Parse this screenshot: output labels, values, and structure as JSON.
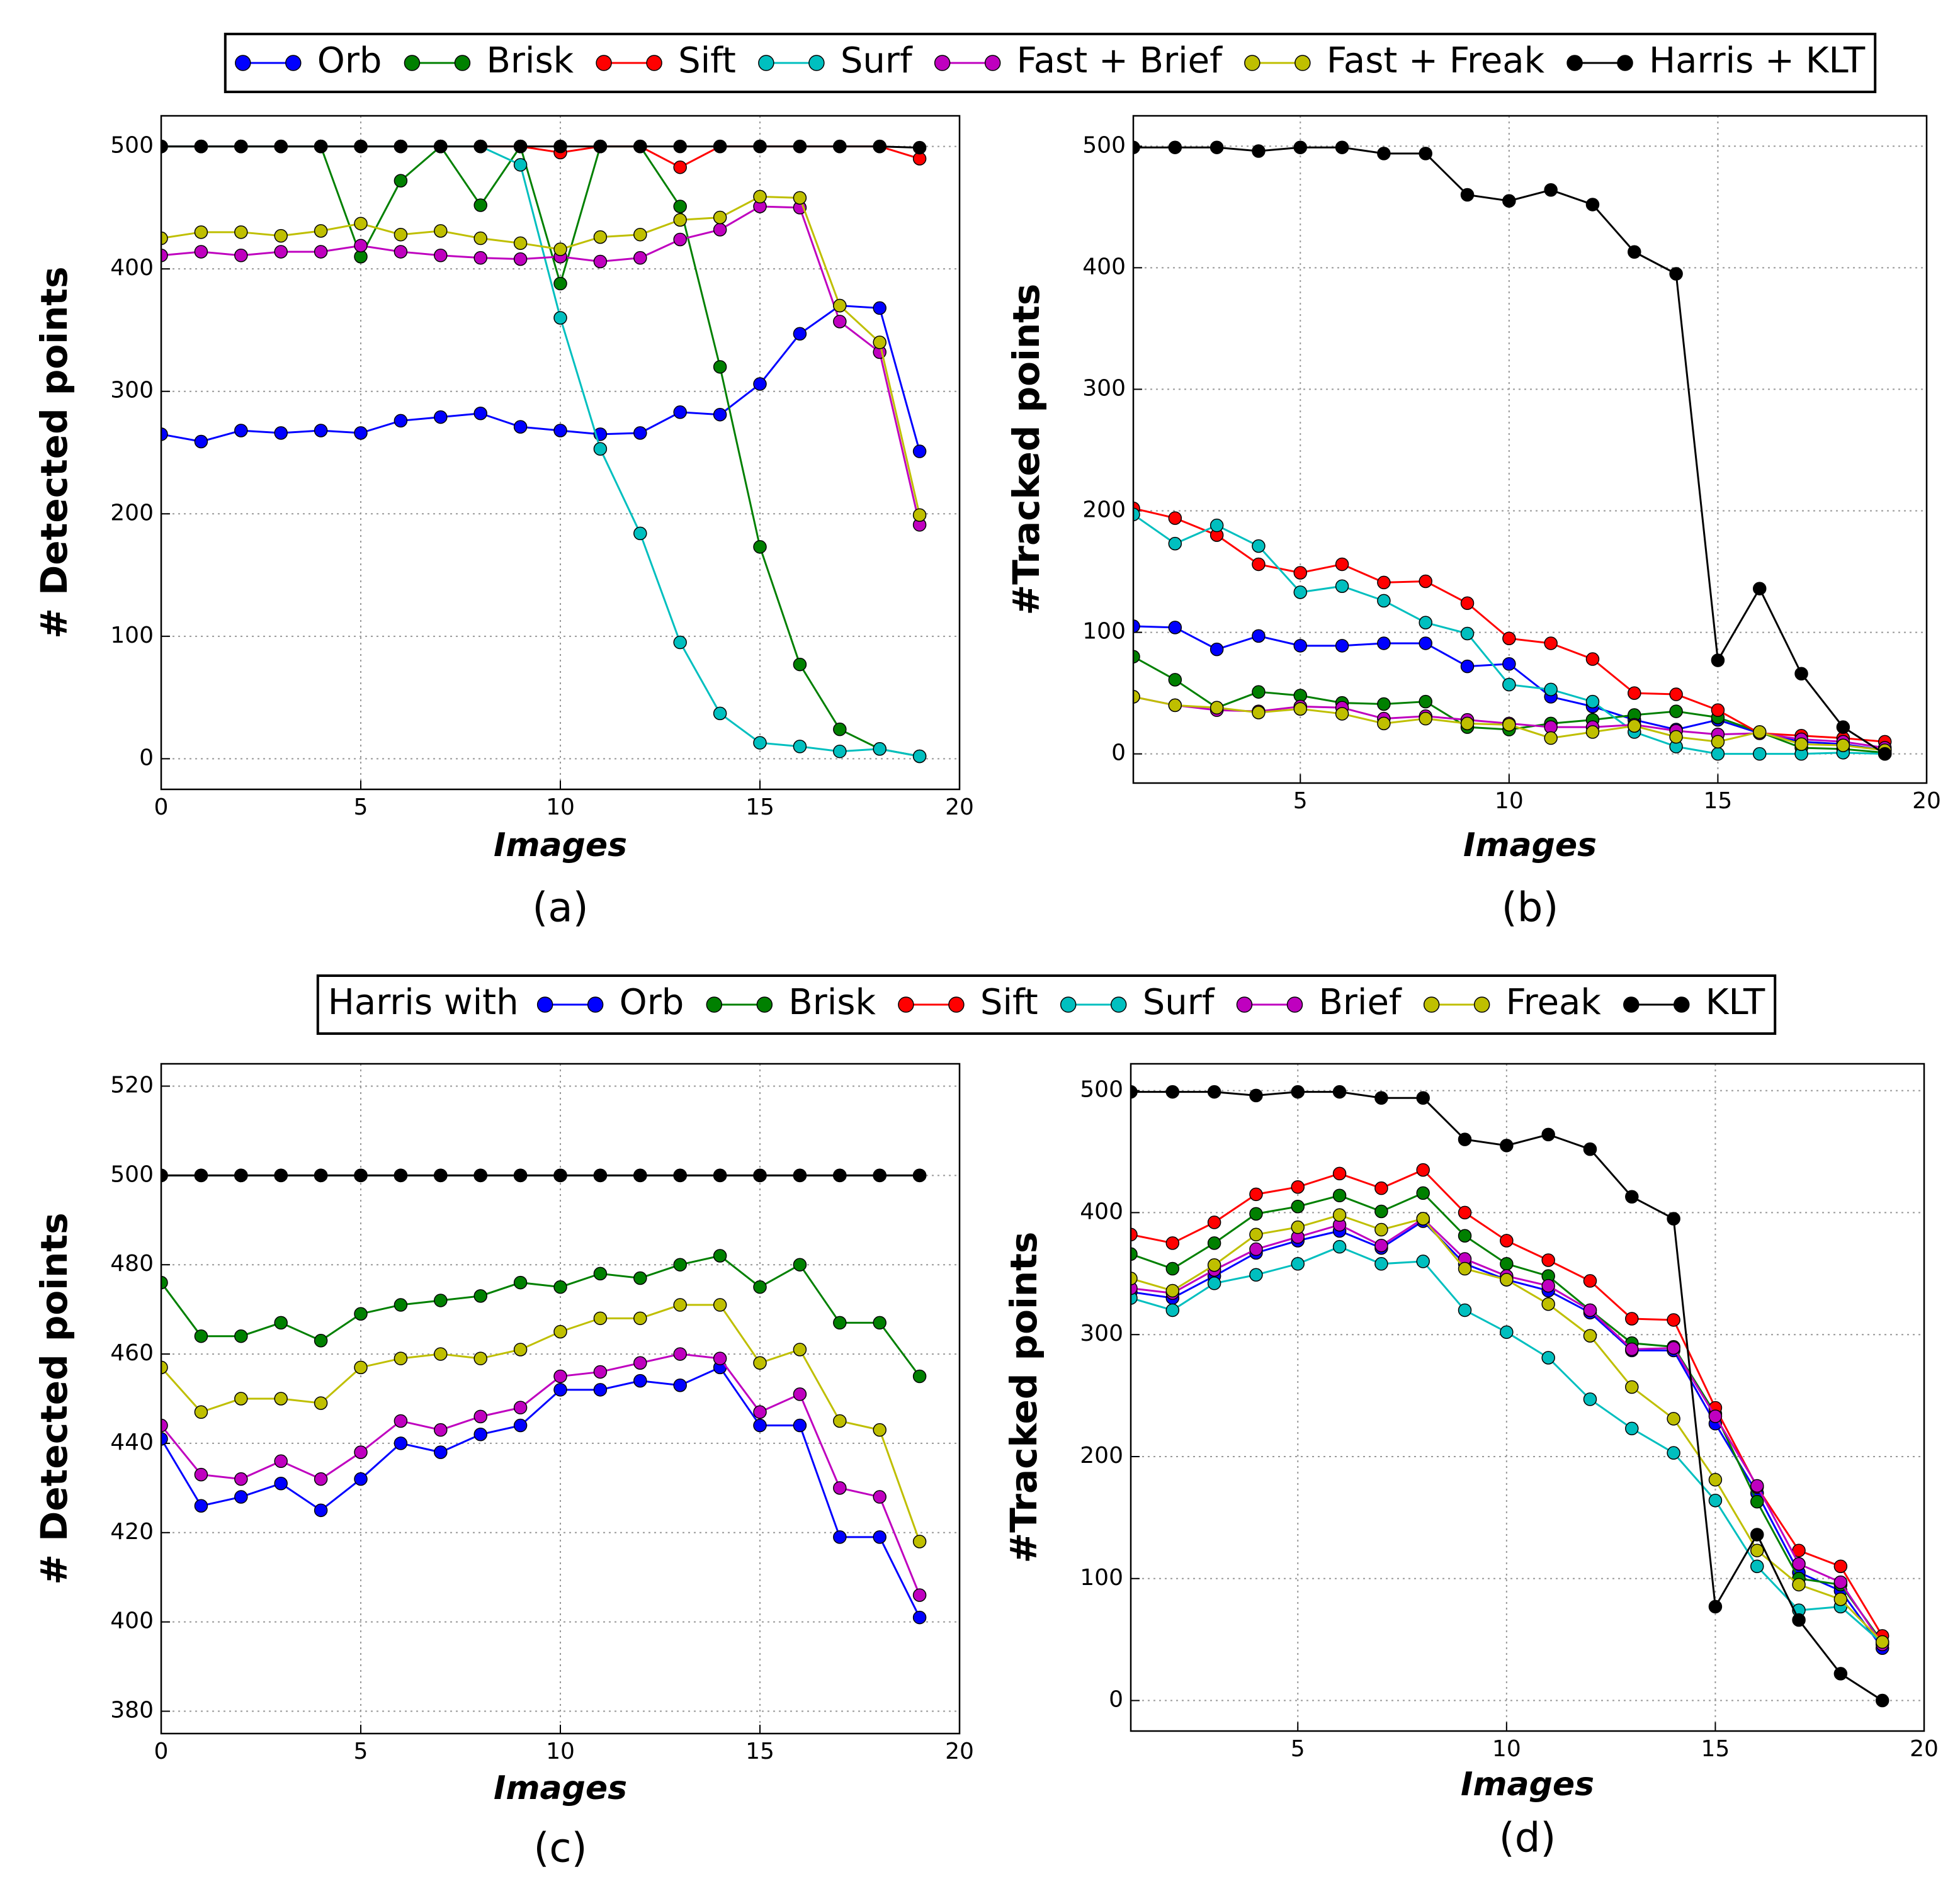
{
  "chart_data": [
    {
      "type": "line",
      "caption": "(a)",
      "xlabel": "Images",
      "ylabel": "# Detected points",
      "x": [
        0,
        1,
        2,
        3,
        4,
        5,
        6,
        7,
        8,
        9,
        10,
        11,
        12,
        13,
        14,
        15,
        16,
        17,
        18,
        19
      ],
      "xlim": [
        0,
        20
      ],
      "xticks": [
        0,
        5,
        10,
        15,
        20
      ],
      "ylim": [
        -25,
        525
      ],
      "yticks": [
        0,
        100,
        200,
        300,
        400,
        500
      ],
      "grid": true,
      "legend": "top",
      "series": [
        {
          "name": "Orb",
          "color": "#0000ff",
          "values": [
            265,
            259,
            268,
            266,
            268,
            266,
            276,
            279,
            282,
            271,
            268,
            265,
            266,
            283,
            281,
            306,
            347,
            370,
            368,
            251
          ]
        },
        {
          "name": "Brisk",
          "color": "#008000",
          "values": [
            500,
            500,
            500,
            500,
            500,
            410,
            472,
            500,
            452,
            500,
            388,
            500,
            500,
            451,
            320,
            173,
            77,
            24,
            8,
            2
          ]
        },
        {
          "name": "Sift",
          "color": "#ff0000",
          "values": [
            500,
            500,
            500,
            500,
            500,
            500,
            500,
            500,
            500,
            500,
            495,
            500,
            500,
            483,
            500,
            500,
            500,
            500,
            500,
            490
          ]
        },
        {
          "name": "Surf",
          "color": "#00bfbf",
          "values": [
            500,
            500,
            500,
            500,
            500,
            500,
            500,
            500,
            500,
            485,
            360,
            253,
            184,
            95,
            37,
            13,
            10,
            6,
            8,
            2
          ]
        },
        {
          "name": "Fast + Brief",
          "color": "#bf00bf",
          "values": [
            411,
            414,
            411,
            414,
            414,
            419,
            414,
            411,
            409,
            408,
            410,
            406,
            409,
            424,
            432,
            451,
            450,
            357,
            332,
            191
          ]
        },
        {
          "name": "Fast + Freak",
          "color": "#bfbf00",
          "values": [
            425,
            430,
            430,
            427,
            431,
            437,
            428,
            431,
            425,
            421,
            416,
            426,
            428,
            440,
            442,
            459,
            458,
            370,
            340,
            199
          ]
        },
        {
          "name": "Harris + KLT",
          "color": "#000000",
          "values": [
            500,
            500,
            500,
            500,
            500,
            500,
            500,
            500,
            500,
            500,
            500,
            500,
            500,
            500,
            500,
            500,
            500,
            500,
            500,
            499
          ]
        }
      ]
    },
    {
      "type": "line",
      "caption": "(b)",
      "xlabel": "Images",
      "ylabel": "#Tracked points",
      "x": [
        1,
        2,
        3,
        4,
        5,
        6,
        7,
        8,
        9,
        10,
        11,
        12,
        13,
        14,
        15,
        16,
        17,
        18,
        19
      ],
      "xlim": [
        1,
        20
      ],
      "xticks": [
        5,
        10,
        15,
        20
      ],
      "ylim": [
        -24,
        525
      ],
      "yticks": [
        0,
        100,
        200,
        300,
        400,
        500
      ],
      "grid": true,
      "series": [
        {
          "color": "#0000ff",
          "values": [
            105,
            104,
            86,
            97,
            89,
            89,
            91,
            91,
            72,
            74,
            47,
            39,
            28,
            20,
            28,
            17,
            10,
            8,
            3
          ]
        },
        {
          "color": "#008000",
          "values": [
            80,
            61,
            38,
            51,
            48,
            42,
            41,
            43,
            22,
            20,
            25,
            28,
            32,
            35,
            30,
            18,
            5,
            4,
            1
          ]
        },
        {
          "color": "#ff0000",
          "values": [
            202,
            194,
            180,
            156,
            149,
            156,
            141,
            142,
            124,
            95,
            91,
            78,
            50,
            49,
            36,
            17,
            15,
            13,
            10
          ]
        },
        {
          "color": "#00bfbf",
          "values": [
            197,
            173,
            188,
            171,
            133,
            138,
            126,
            108,
            99,
            57,
            53,
            43,
            18,
            6,
            0,
            0,
            0,
            1,
            0
          ]
        },
        {
          "color": "#bf00bf",
          "values": [
            47,
            40,
            36,
            35,
            39,
            38,
            29,
            31,
            28,
            25,
            22,
            22,
            24,
            19,
            16,
            17,
            12,
            10,
            5
          ]
        },
        {
          "color": "#bfbf00",
          "values": [
            47,
            40,
            38,
            34,
            37,
            33,
            25,
            29,
            25,
            24,
            13,
            18,
            23,
            14,
            10,
            18,
            8,
            7,
            3
          ]
        },
        {
          "color": "#000000",
          "values": [
            499,
            499,
            499,
            496,
            499,
            499,
            494,
            494,
            460,
            455,
            464,
            452,
            413,
            395,
            77,
            136,
            66,
            22,
            0
          ]
        }
      ]
    },
    {
      "type": "line",
      "caption": "(c)",
      "xlabel": "Images",
      "ylabel": "# Detected points",
      "x": [
        0,
        1,
        2,
        3,
        4,
        5,
        6,
        7,
        8,
        9,
        10,
        11,
        12,
        13,
        14,
        15,
        16,
        17,
        18,
        19
      ],
      "xlim": [
        0,
        20
      ],
      "xticks": [
        0,
        5,
        10,
        15,
        20
      ],
      "ylim": [
        375,
        525
      ],
      "yticks": [
        380,
        400,
        420,
        440,
        460,
        480,
        500,
        520
      ],
      "grid": true,
      "legend": "top",
      "legend_title": "Harris with",
      "series": [
        {
          "name": "Orb",
          "color": "#0000ff",
          "values": [
            441,
            426,
            428,
            431,
            425,
            432,
            440,
            438,
            442,
            444,
            452,
            452,
            454,
            453,
            457,
            444,
            444,
            419,
            419,
            401
          ]
        },
        {
          "name": "Brisk",
          "color": "#008000",
          "values": [
            476,
            464,
            464,
            467,
            463,
            469,
            471,
            472,
            473,
            476,
            475,
            478,
            477,
            480,
            482,
            475,
            480,
            467,
            467,
            455
          ]
        },
        {
          "name": "Sift",
          "color": "#ff0000",
          "values": [
            500,
            500,
            500,
            500,
            500,
            500,
            500,
            500,
            500,
            500,
            500,
            500,
            500,
            500,
            500,
            500,
            500,
            500,
            500,
            500
          ]
        },
        {
          "name": "Surf",
          "color": "#00bfbf",
          "values": [
            500,
            500,
            500,
            500,
            500,
            500,
            500,
            500,
            500,
            500,
            500,
            500,
            500,
            500,
            500,
            500,
            500,
            500,
            500,
            500
          ]
        },
        {
          "name": "Brief",
          "color": "#bf00bf",
          "values": [
            444,
            433,
            432,
            436,
            432,
            438,
            445,
            443,
            446,
            448,
            455,
            456,
            458,
            460,
            459,
            447,
            451,
            430,
            428,
            406
          ]
        },
        {
          "name": "Freak",
          "color": "#bfbf00",
          "values": [
            457,
            447,
            450,
            450,
            449,
            457,
            459,
            460,
            459,
            461,
            465,
            468,
            468,
            471,
            471,
            458,
            461,
            445,
            443,
            418
          ]
        },
        {
          "name": "KLT",
          "color": "#000000",
          "values": [
            500,
            500,
            500,
            500,
            500,
            500,
            500,
            500,
            500,
            500,
            500,
            500,
            500,
            500,
            500,
            500,
            500,
            500,
            500,
            500
          ]
        }
      ]
    },
    {
      "type": "line",
      "caption": "(d)",
      "xlabel": "Images",
      "ylabel": "#Tracked points",
      "x": [
        1,
        2,
        3,
        4,
        5,
        6,
        7,
        8,
        9,
        10,
        11,
        12,
        13,
        14,
        15,
        16,
        17,
        18,
        19
      ],
      "xlim": [
        1,
        20
      ],
      "xticks": [
        5,
        10,
        15,
        20
      ],
      "ylim": [
        -25,
        522
      ],
      "yticks": [
        0,
        100,
        200,
        300,
        400,
        500
      ],
      "grid": true,
      "series": [
        {
          "color": "#0000ff",
          "values": [
            335,
            330,
            348,
            367,
            377,
            385,
            371,
            393,
            358,
            345,
            336,
            318,
            287,
            287,
            227,
            170,
            105,
            90,
            43
          ]
        },
        {
          "color": "#008000",
          "values": [
            366,
            354,
            375,
            399,
            405,
            414,
            401,
            416,
            381,
            358,
            348,
            320,
            293,
            290,
            235,
            163,
            100,
            95,
            48
          ]
        },
        {
          "color": "#ff0000",
          "values": [
            382,
            375,
            392,
            415,
            421,
            432,
            420,
            435,
            400,
            377,
            361,
            344,
            313,
            312,
            240,
            175,
            123,
            110,
            53
          ]
        },
        {
          "color": "#00bfbf",
          "values": [
            330,
            320,
            342,
            349,
            358,
            372,
            358,
            360,
            320,
            302,
            281,
            247,
            223,
            203,
            164,
            110,
            74,
            77,
            47
          ]
        },
        {
          "color": "#bf00bf",
          "values": [
            338,
            334,
            353,
            370,
            380,
            390,
            373,
            395,
            362,
            348,
            340,
            320,
            288,
            289,
            233,
            176,
            112,
            97,
            46
          ]
        },
        {
          "color": "#bfbf00",
          "values": [
            346,
            336,
            357,
            382,
            388,
            398,
            386,
            395,
            354,
            345,
            325,
            299,
            257,
            231,
            181,
            123,
            95,
            83,
            48
          ]
        },
        {
          "color": "#000000",
          "values": [
            499,
            499,
            499,
            496,
            499,
            499,
            494,
            494,
            460,
            455,
            464,
            452,
            413,
            395,
            77,
            136,
            66,
            22,
            0
          ]
        }
      ]
    }
  ]
}
